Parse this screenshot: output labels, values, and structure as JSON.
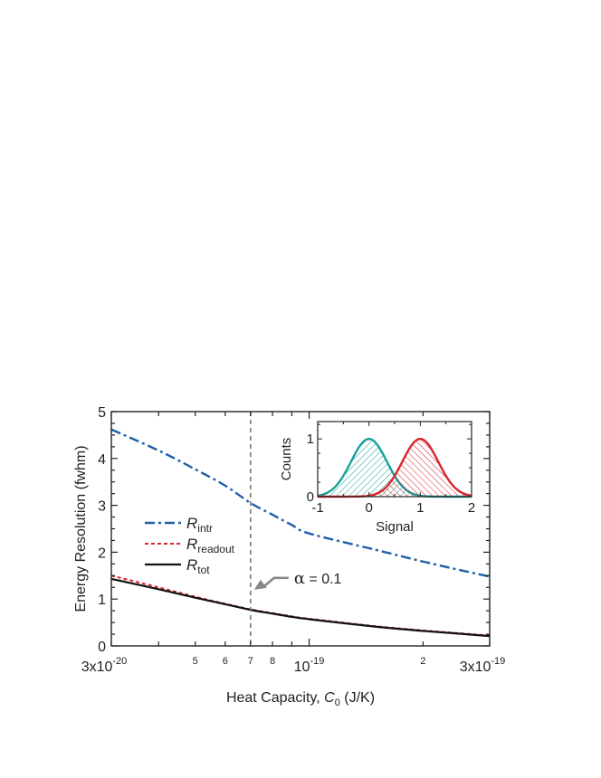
{
  "chart_data": [
    {
      "type": "line",
      "xlabel": "Heat Capacity, C₀ (J/K)",
      "xlabel_parts": {
        "pre": "Heat Capacity, ",
        "sym": "C",
        "sub": "0",
        "post": " (J/K)"
      },
      "ylabel": "Energy Resolution (fwhm)",
      "xscale": "log",
      "xlim": [
        3e-20,
        3e-19
      ],
      "ylim": [
        0,
        5
      ],
      "grid": false,
      "legend_placement": "center-left",
      "y_ticks": [
        "0",
        "1",
        "2",
        "3",
        "4",
        "5"
      ],
      "x_major_labels": [
        {
          "x": 3e-20,
          "base": "3x10",
          "exp": "-20"
        },
        {
          "x": 1e-19,
          "base": "10",
          "exp": "-19"
        },
        {
          "x": 3e-19,
          "base": "3x10",
          "exp": "-19"
        }
      ],
      "x_minor_labels": [
        {
          "x": 5e-20,
          "label": "5"
        },
        {
          "x": 6e-20,
          "label": "6"
        },
        {
          "x": 7e-20,
          "label": "7"
        },
        {
          "x": 8e-20,
          "label": "8"
        },
        {
          "x": 2e-19,
          "label": "2"
        }
      ],
      "x": [
        3e-20,
        4e-20,
        5e-20,
        6e-20,
        7e-20,
        8e-20,
        9e-20,
        1e-19,
        1.5e-19,
        2e-19,
        2.5e-19,
        3e-19
      ],
      "series": [
        {
          "name": "R",
          "sub": "intr",
          "color": "#1f5fa8",
          "style": "dashdot",
          "values": [
            4.62,
            4.17,
            3.77,
            3.42,
            3.05,
            2.8,
            2.58,
            2.4,
            2.05,
            1.8,
            1.62,
            1.48
          ]
        },
        {
          "name": "R",
          "sub": "readout",
          "color": "#d7262b",
          "style": "dotted",
          "values": [
            1.5,
            1.25,
            1.05,
            0.9,
            0.78,
            0.7,
            0.63,
            0.58,
            0.42,
            0.33,
            0.27,
            0.22
          ]
        },
        {
          "name": "R",
          "sub": "tot",
          "color": "#111111",
          "style": "solid",
          "values": [
            1.43,
            1.21,
            1.03,
            0.89,
            0.77,
            0.69,
            0.62,
            0.57,
            0.41,
            0.32,
            0.26,
            0.21
          ]
        }
      ],
      "vline": {
        "x": 7e-20,
        "color": "#777777",
        "style": "dashed"
      },
      "annotation": {
        "symbol": "α",
        "text": " = 0.1",
        "x": 7e-20,
        "y": 1.2
      }
    },
    {
      "type": "area",
      "xlabel": "Signal",
      "ylabel": "Counts",
      "xlim": [
        -1,
        2
      ],
      "ylim": [
        0,
        1.3
      ],
      "x_ticks": [
        "-1",
        "0",
        "1",
        "2"
      ],
      "y_ticks": [
        "0",
        "1"
      ],
      "series": [
        {
          "center": 0,
          "sigma": 0.35,
          "amplitude": 1.0,
          "color": "#17a09a",
          "hatch": "diagonal"
        },
        {
          "center": 1,
          "sigma": 0.35,
          "amplitude": 1.0,
          "color": "#d7262b",
          "hatch": "diagonal"
        }
      ]
    }
  ]
}
